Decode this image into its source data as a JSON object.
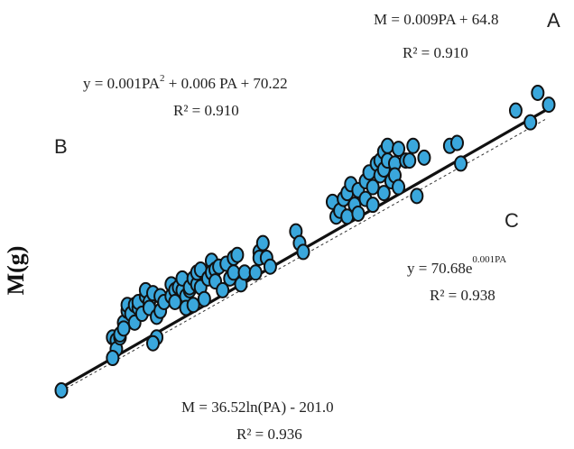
{
  "chart_data": {
    "type": "scatter",
    "title": "",
    "xlabel": "",
    "ylabel": "M(g)",
    "marker_color": "#3aa7dc",
    "marker_edge_color": "#111111",
    "panel_letters": [
      "A",
      "B",
      "C"
    ],
    "equations": [
      {
        "id": "A",
        "line1": "M = 0.009PA + 64.8",
        "line2": "R² = 0.910"
      },
      {
        "id": "B",
        "line1_main": "y = 0.001PA",
        "line1_sup": "2",
        "line1_rest": " + 0.006 PA + 70.22",
        "line2": "R² = 0.910"
      },
      {
        "id": "C",
        "line1_main": "y = 70.68e",
        "line1_sup": "0.001PA",
        "line2": "R² = 0.938"
      },
      {
        "id": "D",
        "line1": "M = 36.52ln(PA) - 201.0",
        "line2": "R² = 0.936"
      }
    ],
    "points": [
      [
        1,
        1
      ],
      [
        15,
        19
      ],
      [
        16,
        18
      ],
      [
        16,
        15
      ],
      [
        17,
        19
      ],
      [
        15,
        12
      ],
      [
        18,
        24
      ],
      [
        17,
        20
      ],
      [
        18,
        22
      ],
      [
        19,
        28
      ],
      [
        19,
        30
      ],
      [
        20,
        27
      ],
      [
        21,
        24
      ],
      [
        21,
        30
      ],
      [
        22,
        29
      ],
      [
        22,
        31
      ],
      [
        23,
        27
      ],
      [
        24,
        33
      ],
      [
        24,
        35
      ],
      [
        25,
        31
      ],
      [
        25,
        29
      ],
      [
        26,
        34
      ],
      [
        27,
        26
      ],
      [
        27,
        19
      ],
      [
        26,
        17
      ],
      [
        28,
        33
      ],
      [
        28,
        28
      ],
      [
        29,
        31
      ],
      [
        31,
        33
      ],
      [
        31,
        37
      ],
      [
        32,
        35
      ],
      [
        32,
        31
      ],
      [
        33,
        36
      ],
      [
        34,
        35
      ],
      [
        34,
        39
      ],
      [
        35,
        33
      ],
      [
        35,
        29
      ],
      [
        36,
        35
      ],
      [
        36,
        36
      ],
      [
        37,
        39
      ],
      [
        37,
        30
      ],
      [
        38,
        37
      ],
      [
        38,
        41
      ],
      [
        39,
        42
      ],
      [
        39,
        36
      ],
      [
        40,
        32
      ],
      [
        41,
        39
      ],
      [
        42,
        45
      ],
      [
        42,
        41
      ],
      [
        43,
        42
      ],
      [
        43,
        38
      ],
      [
        44,
        43
      ],
      [
        45,
        35
      ],
      [
        46,
        44
      ],
      [
        47,
        39
      ],
      [
        48,
        46
      ],
      [
        48,
        41
      ],
      [
        49,
        47
      ],
      [
        50,
        37
      ],
      [
        51,
        41
      ],
      [
        54,
        41
      ],
      [
        55,
        48
      ],
      [
        55,
        46
      ],
      [
        56,
        51
      ],
      [
        57,
        46
      ],
      [
        58,
        43
      ],
      [
        65,
        55
      ],
      [
        66,
        51
      ],
      [
        67,
        48
      ],
      [
        75,
        65
      ],
      [
        76,
        60
      ],
      [
        77,
        62
      ],
      [
        78,
        66
      ],
      [
        79,
        60
      ],
      [
        79,
        68
      ],
      [
        80,
        71
      ],
      [
        81,
        64
      ],
      [
        82,
        69
      ],
      [
        82,
        61
      ],
      [
        84,
        72
      ],
      [
        84,
        66
      ],
      [
        85,
        75
      ],
      [
        86,
        64
      ],
      [
        86,
        70
      ],
      [
        87,
        78
      ],
      [
        88,
        79
      ],
      [
        88,
        74
      ],
      [
        89,
        68
      ],
      [
        89,
        76
      ],
      [
        89,
        82
      ],
      [
        90,
        84
      ],
      [
        90,
        79
      ],
      [
        91,
        72
      ],
      [
        92,
        78
      ],
      [
        92,
        74
      ],
      [
        93,
        83
      ],
      [
        93,
        70
      ],
      [
        95,
        79
      ],
      [
        96,
        79
      ],
      [
        97,
        84
      ],
      [
        98,
        67
      ],
      [
        100,
        80
      ],
      [
        107,
        84
      ],
      [
        109,
        85
      ],
      [
        110,
        78
      ],
      [
        125,
        96
      ],
      [
        129,
        92
      ],
      [
        131,
        102
      ],
      [
        134,
        98
      ]
    ],
    "trend": {
      "x0": 1,
      "y0": 2,
      "x1": 133,
      "y1": 96
    }
  }
}
